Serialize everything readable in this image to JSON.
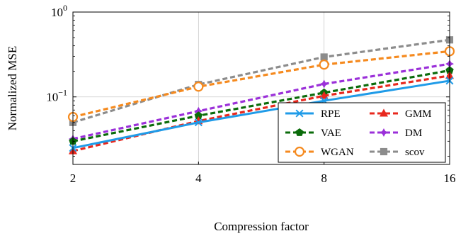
{
  "chart_data": {
    "type": "line",
    "title": "",
    "xlabel": "Compression factor",
    "ylabel": "Normalized MSE",
    "x": [
      2,
      4,
      8,
      16
    ],
    "x_tick_labels": [
      "2",
      "4",
      "8",
      "16"
    ],
    "xlim": [
      2,
      16
    ],
    "y_scale": "log",
    "ylim": [
      0.016,
      1.0
    ],
    "y_tick_labels": [
      {
        "value": 1.0,
        "base": "10",
        "exp": "0"
      },
      {
        "value": 0.1,
        "base": "10",
        "exp": "−1"
      }
    ],
    "grid": true,
    "legend_position": "bottom-right",
    "legend_columns": 2,
    "series": [
      {
        "name": "RPE",
        "color": "#1f9be8",
        "marker": "x-icon",
        "dash": "solid",
        "values": [
          0.025,
          0.05,
          0.09,
          0.155
        ]
      },
      {
        "name": "GMM",
        "color": "#e8281e",
        "marker": "triangle-icon",
        "dash": "dashed",
        "values": [
          0.023,
          0.052,
          0.103,
          0.178
        ]
      },
      {
        "name": "VAE",
        "color": "#0a6b0a",
        "marker": "pentagon-icon",
        "dash": "dashed",
        "values": [
          0.03,
          0.06,
          0.112,
          0.205
        ]
      },
      {
        "name": "DM",
        "color": "#9b30d9",
        "marker": "star-icon",
        "dash": "dashed",
        "values": [
          0.032,
          0.068,
          0.142,
          0.245
        ]
      },
      {
        "name": "WGAN",
        "color": "#f58a1f",
        "marker": "circle-icon",
        "dash": "dashed",
        "values": [
          0.058,
          0.132,
          0.24,
          0.345
        ]
      },
      {
        "name": "scov",
        "color": "#8c8c8c",
        "marker": "square-icon",
        "dash": "dashed",
        "values": [
          0.05,
          0.14,
          0.295,
          0.47
        ]
      }
    ]
  }
}
